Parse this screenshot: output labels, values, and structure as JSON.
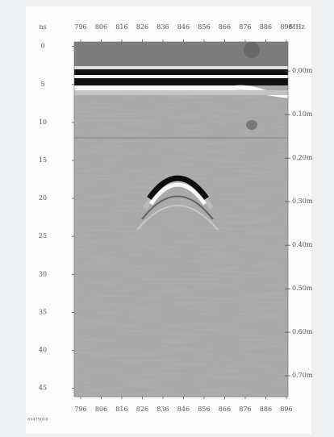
{
  "chart_data": {
    "type": "radargram",
    "y_label": "ns",
    "x_label": "MHz",
    "xlim": [
      792.9,
      896.8
    ],
    "xticks": [
      796,
      806,
      816,
      826,
      836,
      846,
      856,
      866,
      876,
      886,
      896
    ],
    "ylim": [
      -0.6,
      46.1
    ],
    "yticks": [
      0,
      5,
      10,
      15,
      20,
      25,
      30,
      35,
      40,
      45
    ],
    "y2lim": [
      -0.067,
      0.748
    ],
    "y2ticks": [
      {
        "value": 0,
        "label": "0.00m"
      },
      {
        "value": 0.1,
        "label": "0.10m"
      },
      {
        "value": 0.2,
        "label": "0.20m"
      },
      {
        "value": 0.3,
        "label": "0.30m"
      },
      {
        "value": 0.4,
        "label": "0.40m"
      },
      {
        "value": 0.5,
        "label": "0.50m"
      },
      {
        "value": 0.6,
        "label": "0.60m"
      },
      {
        "value": 0.7,
        "label": "0.70m"
      }
    ],
    "footnote": "83475018"
  }
}
